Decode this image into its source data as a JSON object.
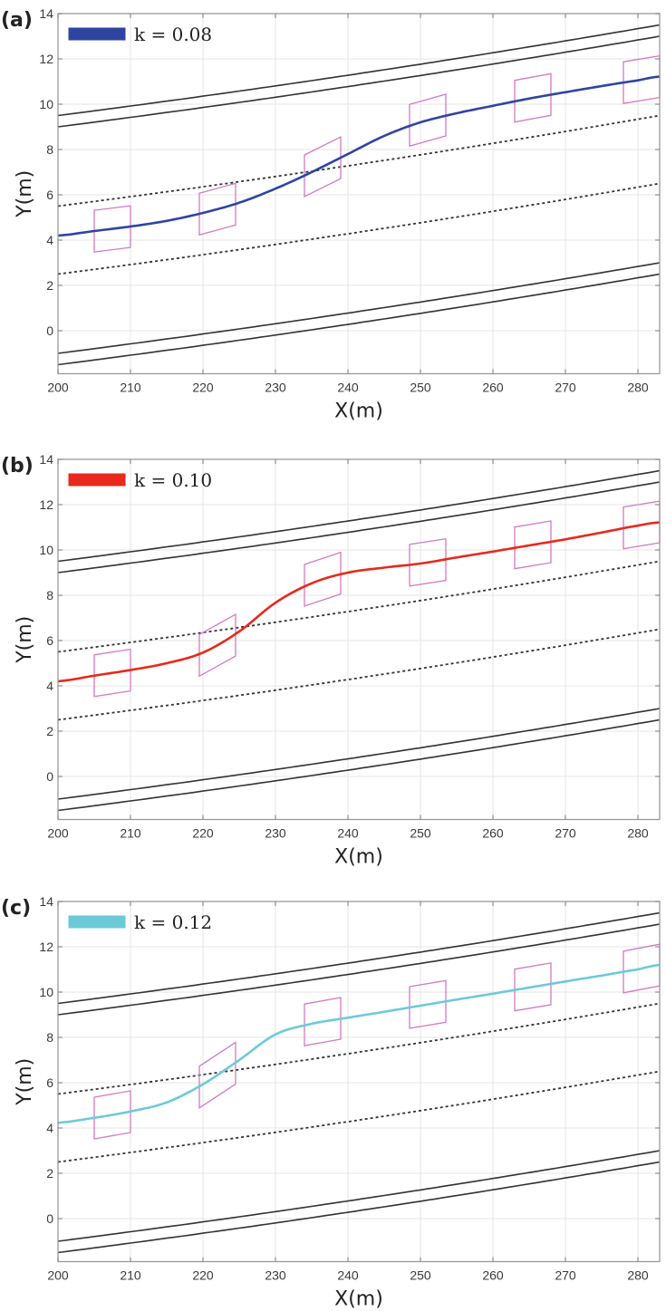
{
  "chart_data": [
    {
      "type": "line",
      "panel_label": "(a)",
      "xlabel": "X(m)",
      "ylabel": "Y(m)",
      "xlim": [
        200,
        283
      ],
      "ylim": [
        -1.9,
        14
      ],
      "xticks": [
        200,
        210,
        220,
        230,
        240,
        250,
        260,
        270,
        280
      ],
      "yticks": [
        0,
        2,
        4,
        6,
        8,
        10,
        12,
        14
      ],
      "grid": true,
      "legend_position": "top-left",
      "road_lines": [
        {
          "style": "solid",
          "y_start": 9.5,
          "y_end": 13.5
        },
        {
          "style": "solid",
          "y_start": 9.0,
          "y_end": 13.0
        },
        {
          "style": "dashed",
          "y_start": 5.5,
          "y_end": 9.5
        },
        {
          "style": "dashed",
          "y_start": 2.5,
          "y_end": 6.5
        },
        {
          "style": "solid",
          "y_start": -1.0,
          "y_end": 3.0
        },
        {
          "style": "solid",
          "y_start": -1.5,
          "y_end": 2.5
        }
      ],
      "series": [
        {
          "name": "k = 0.08",
          "color": "#2E45A0",
          "x": [
            200,
            205,
            210,
            215,
            220,
            225,
            230,
            235,
            240,
            245,
            250,
            255,
            260,
            265,
            270,
            275,
            280,
            283
          ],
          "y": [
            4.2,
            4.4,
            4.6,
            4.85,
            5.2,
            5.65,
            6.27,
            7.0,
            7.8,
            8.6,
            9.2,
            9.6,
            9.93,
            10.25,
            10.53,
            10.8,
            11.05,
            11.22
          ]
        }
      ],
      "vehicle_x": [
        207.5,
        222,
        236.5,
        251,
        265.5,
        280.5
      ],
      "vehicle_color": "#D27AC4"
    },
    {
      "type": "line",
      "panel_label": "(b)",
      "xlabel": "X(m)",
      "ylabel": "Y(m)",
      "xlim": [
        200,
        283
      ],
      "ylim": [
        -1.9,
        14
      ],
      "xticks": [
        200,
        210,
        220,
        230,
        240,
        250,
        260,
        270,
        280
      ],
      "yticks": [
        0,
        2,
        4,
        6,
        8,
        10,
        12,
        14
      ],
      "grid": true,
      "legend_position": "top-left",
      "road_lines": [
        {
          "style": "solid",
          "y_start": 9.5,
          "y_end": 13.5
        },
        {
          "style": "solid",
          "y_start": 9.0,
          "y_end": 13.0
        },
        {
          "style": "dashed",
          "y_start": 5.5,
          "y_end": 9.5
        },
        {
          "style": "dashed",
          "y_start": 2.5,
          "y_end": 6.5
        },
        {
          "style": "solid",
          "y_start": -1.0,
          "y_end": 3.0
        },
        {
          "style": "solid",
          "y_start": -1.5,
          "y_end": 2.5
        }
      ],
      "series": [
        {
          "name": "k = 0.10",
          "color": "#E8291C",
          "x": [
            200,
            205,
            210,
            215,
            220,
            225,
            230,
            235,
            240,
            245,
            250,
            255,
            260,
            265,
            270,
            275,
            280,
            283
          ],
          "y": [
            4.2,
            4.45,
            4.7,
            5.0,
            5.47,
            6.4,
            7.67,
            8.53,
            9.0,
            9.22,
            9.4,
            9.67,
            9.93,
            10.2,
            10.47,
            10.77,
            11.07,
            11.22
          ]
        }
      ],
      "vehicle_x": [
        207.5,
        222,
        236.5,
        251,
        265.5,
        280.5
      ],
      "vehicle_color": "#D27AC4"
    },
    {
      "type": "line",
      "panel_label": "(c)",
      "xlabel": "X(m)",
      "ylabel": "Y(m)",
      "xlim": [
        200,
        283
      ],
      "ylim": [
        -1.9,
        14
      ],
      "xticks": [
        200,
        210,
        220,
        230,
        240,
        250,
        260,
        270,
        280
      ],
      "yticks": [
        0,
        2,
        4,
        6,
        8,
        10,
        12,
        14
      ],
      "grid": true,
      "legend_position": "top-left",
      "road_lines": [
        {
          "style": "solid",
          "y_start": 9.5,
          "y_end": 13.5
        },
        {
          "style": "solid",
          "y_start": 9.0,
          "y_end": 13.0
        },
        {
          "style": "dashed",
          "y_start": 5.5,
          "y_end": 9.5
        },
        {
          "style": "dashed",
          "y_start": 2.5,
          "y_end": 6.5
        },
        {
          "style": "solid",
          "y_start": -1.0,
          "y_end": 3.0
        },
        {
          "style": "solid",
          "y_start": -1.5,
          "y_end": 2.5
        }
      ],
      "series": [
        {
          "name": "k = 0.12",
          "color": "#6CCAD8",
          "x": [
            200,
            205,
            210,
            215,
            220,
            225,
            230,
            235,
            240,
            245,
            250,
            255,
            260,
            265,
            270,
            275,
            280,
            283
          ],
          "y": [
            4.23,
            4.45,
            4.73,
            5.13,
            5.93,
            7.0,
            8.13,
            8.6,
            8.87,
            9.13,
            9.4,
            9.67,
            9.93,
            10.2,
            10.47,
            10.73,
            11.0,
            11.2
          ]
        }
      ],
      "vehicle_x": [
        207.5,
        222,
        236.5,
        251,
        265.5,
        280.5
      ],
      "vehicle_color": "#D27AC4"
    }
  ]
}
